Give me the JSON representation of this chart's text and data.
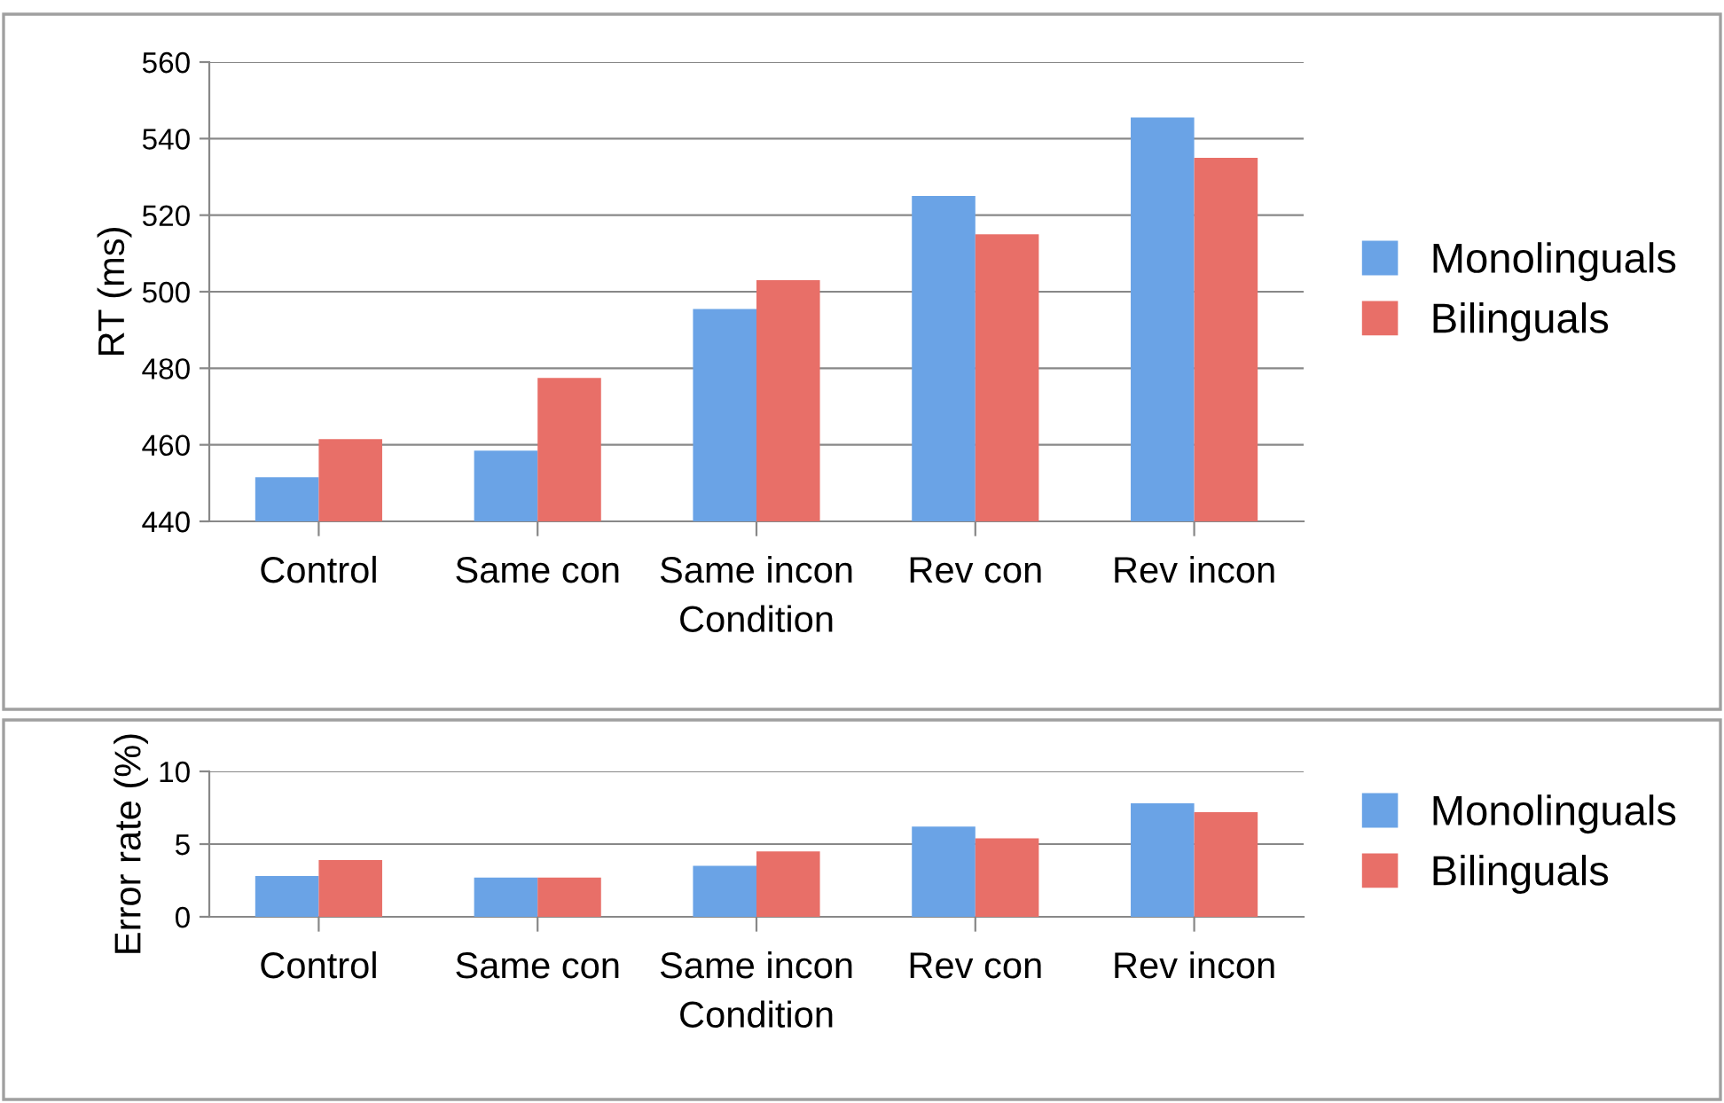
{
  "chart_data": [
    {
      "type": "bar",
      "ylabel": "RT (ms)",
      "xlabel": "Condition",
      "categories": [
        "Control",
        "Same con",
        "Same incon",
        "Rev con",
        "Rev incon"
      ],
      "series": [
        {
          "name": "Monolinguals",
          "color": "#6aa3e6",
          "values": [
            451.5,
            458.5,
            495.5,
            525,
            545.5
          ]
        },
        {
          "name": "Bilinguals",
          "color": "#e86f68",
          "values": [
            461.5,
            477.5,
            503,
            515,
            535
          ]
        }
      ],
      "ylim": [
        440,
        560
      ],
      "yticks": [
        440,
        460,
        480,
        500,
        520,
        540,
        560
      ],
      "grid": "y",
      "legend": "right"
    },
    {
      "type": "bar",
      "ylabel": "Error rate (%)",
      "xlabel": "Condition",
      "categories": [
        "Control",
        "Same con",
        "Same incon",
        "Rev con",
        "Rev incon"
      ],
      "series": [
        {
          "name": "Monolinguals",
          "color": "#6aa3e6",
          "values": [
            2.8,
            2.7,
            3.5,
            6.2,
            7.8
          ]
        },
        {
          "name": "Bilinguals",
          "color": "#e86f68",
          "values": [
            3.9,
            2.7,
            4.5,
            5.4,
            7.2
          ]
        }
      ],
      "ylim": [
        0,
        10
      ],
      "yticks": [
        0,
        5,
        10
      ],
      "grid": "y",
      "legend": "right"
    }
  ]
}
